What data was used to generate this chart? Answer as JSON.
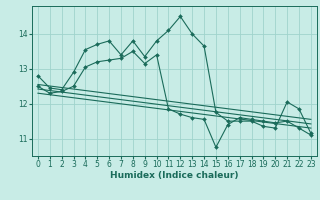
{
  "title": "",
  "xlabel": "Humidex (Indice chaleur)",
  "ylabel": "",
  "bg_color": "#c8ece6",
  "grid_color": "#a0d4cc",
  "line_color": "#1a6b5a",
  "xlim": [
    -0.5,
    23.5
  ],
  "ylim": [
    10.5,
    14.8
  ],
  "yticks": [
    11,
    12,
    13,
    14
  ],
  "xticks": [
    0,
    1,
    2,
    3,
    4,
    5,
    6,
    7,
    8,
    9,
    10,
    11,
    12,
    13,
    14,
    15,
    16,
    17,
    18,
    19,
    20,
    21,
    22,
    23
  ],
  "line1_x": [
    0,
    1,
    2,
    3,
    4,
    5,
    6,
    7,
    8,
    9,
    10,
    11,
    12,
    13,
    14,
    15,
    16,
    17,
    18,
    19,
    20,
    21,
    22,
    23
  ],
  "line1_y": [
    12.8,
    12.45,
    12.4,
    12.9,
    13.55,
    13.7,
    13.8,
    13.4,
    13.8,
    13.35,
    13.8,
    14.1,
    14.5,
    14.0,
    13.65,
    11.75,
    11.5,
    11.5,
    11.5,
    11.35,
    11.3,
    12.05,
    11.85,
    11.15
  ],
  "line2_x": [
    0,
    1,
    2,
    3,
    4,
    5,
    6,
    7,
    8,
    9,
    10,
    11,
    12,
    13,
    14,
    15,
    16,
    17,
    18,
    19,
    20,
    21,
    22,
    23
  ],
  "line2_y": [
    12.5,
    12.3,
    12.35,
    12.5,
    13.05,
    13.2,
    13.25,
    13.3,
    13.5,
    13.15,
    13.4,
    11.85,
    11.7,
    11.6,
    11.55,
    10.75,
    11.4,
    11.6,
    11.55,
    11.5,
    11.45,
    11.5,
    11.3,
    11.1
  ],
  "line3_x": [
    0,
    23
  ],
  "line3_y": [
    12.55,
    11.55
  ],
  "line4_x": [
    0,
    23
  ],
  "line4_y": [
    12.42,
    11.42
  ],
  "line5_x": [
    0,
    23
  ],
  "line5_y": [
    12.3,
    11.3
  ]
}
